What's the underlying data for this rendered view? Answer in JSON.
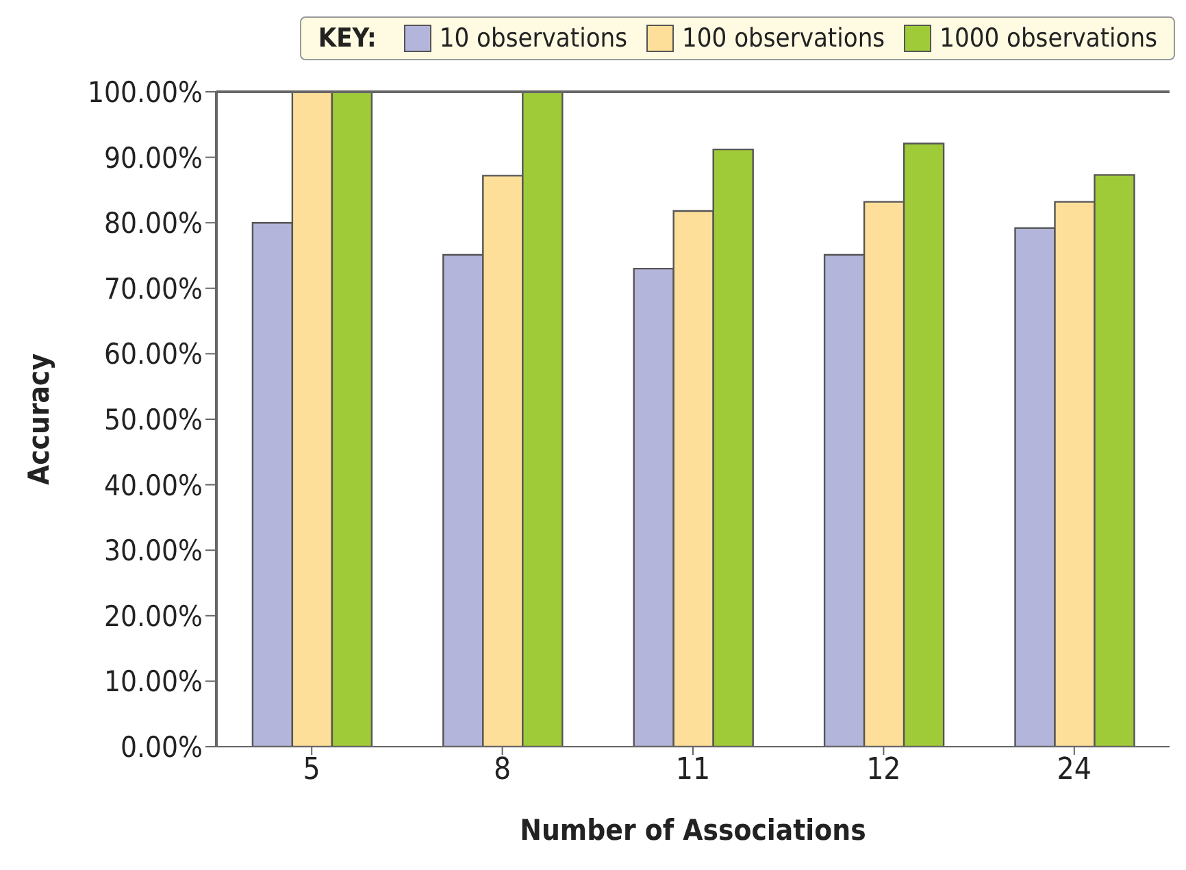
{
  "chart_data": {
    "type": "bar",
    "xlabel": "Number of Associations",
    "ylabel": "Accuracy",
    "legend_title": "KEY:",
    "legend": "top right",
    "grid": false,
    "categories": [
      "5",
      "8",
      "11",
      "12",
      "24"
    ],
    "series": [
      {
        "name": "10 observations",
        "color": "#b3b5db",
        "values": [
          80.0,
          75.1,
          73.0,
          75.1,
          79.2
        ]
      },
      {
        "name": "100 observations",
        "color": "#fedf9a",
        "values": [
          100,
          87.2,
          81.8,
          83.2,
          83.2
        ]
      },
      {
        "name": "1000 observations",
        "color": "#a0cb38",
        "values": [
          100,
          100,
          91.2,
          92.1,
          87.3
        ]
      }
    ],
    "ylim": [
      0,
      100
    ],
    "yticks": [
      {
        "value": 0,
        "label": "0.00%"
      },
      {
        "value": 10,
        "label": "10.00%"
      },
      {
        "value": 20,
        "label": "20.00%"
      },
      {
        "value": 30,
        "label": "30.00%"
      },
      {
        "value": 40,
        "label": "40.00%"
      },
      {
        "value": 50,
        "label": "50.00%"
      },
      {
        "value": 60,
        "label": "60.00%"
      },
      {
        "value": 70,
        "label": "70.00%"
      },
      {
        "value": 80,
        "label": "80.00%"
      },
      {
        "value": 90,
        "label": "90.00%"
      },
      {
        "value": 100,
        "label": "100.00%"
      }
    ]
  }
}
